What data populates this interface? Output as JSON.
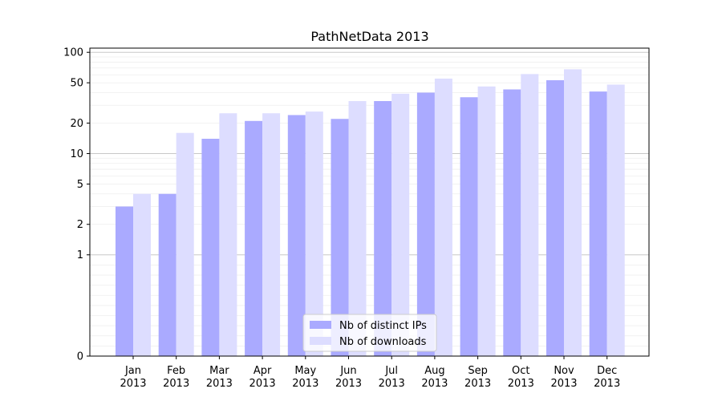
{
  "chart_data": {
    "type": "bar",
    "title": "PathNetData 2013",
    "xlabel": "",
    "ylabel": "",
    "categories": [
      [
        "Jan",
        "2013"
      ],
      [
        "Feb",
        "2013"
      ],
      [
        "Mar",
        "2013"
      ],
      [
        "Apr",
        "2013"
      ],
      [
        "May",
        "2013"
      ],
      [
        "Jun",
        "2013"
      ],
      [
        "Jul",
        "2013"
      ],
      [
        "Aug",
        "2013"
      ],
      [
        "Sep",
        "2013"
      ],
      [
        "Oct",
        "2013"
      ],
      [
        "Nov",
        "2013"
      ],
      [
        "Dec",
        "2013"
      ]
    ],
    "series": [
      {
        "name": "Nb of distinct IPs",
        "color": "#aaaaff",
        "values": [
          3,
          4,
          14,
          21,
          24,
          22,
          33,
          40,
          36,
          43,
          53,
          41
        ]
      },
      {
        "name": "Nb of downloads",
        "color": "#ddddff",
        "values": [
          4,
          16,
          25,
          25,
          26,
          33,
          39,
          55,
          46,
          61,
          68,
          48
        ]
      }
    ],
    "y_scale": "symlog",
    "ylim": [
      0,
      110
    ],
    "yticks": [
      0,
      1,
      2,
      5,
      10,
      20,
      50,
      100
    ],
    "grid": true,
    "legend_position": "bottom-center"
  }
}
